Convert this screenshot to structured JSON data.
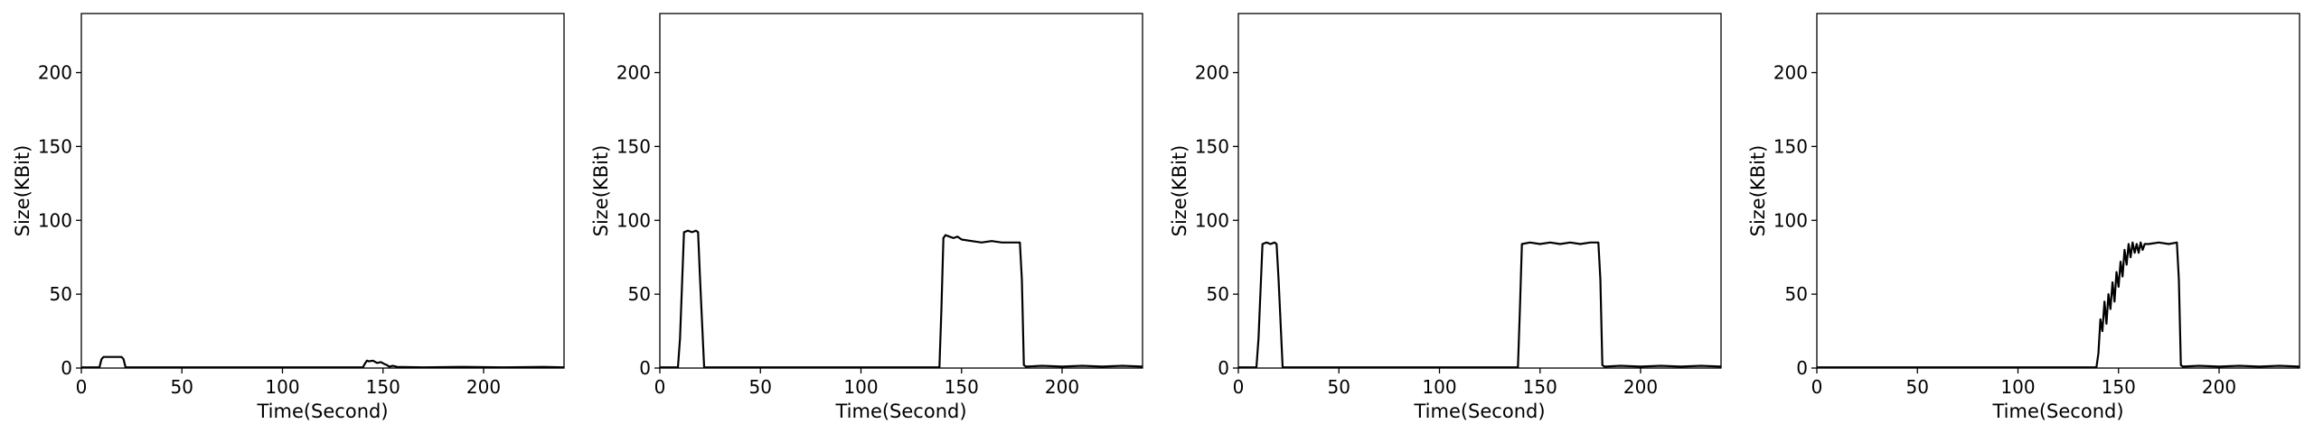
{
  "figure": {
    "colors": {
      "line": "#000000",
      "frame": "#000000",
      "background": "#ffffff"
    }
  },
  "chart_data": [
    {
      "type": "line",
      "title": "",
      "xlabel": "Time(Second)",
      "ylabel": "Size(KBit)",
      "xlim": [
        0,
        240
      ],
      "ylim": [
        0,
        240
      ],
      "xticks": [
        0,
        50,
        100,
        150,
        200
      ],
      "yticks": [
        0,
        50,
        100,
        150,
        200
      ],
      "grid": false,
      "series": [
        {
          "x": [
            0,
            9,
            10,
            11,
            20,
            21,
            22,
            40,
            60,
            80,
            100,
            120,
            140,
            141,
            142,
            143,
            145,
            147,
            149,
            151,
            152,
            153,
            155,
            157,
            170,
            190,
            210,
            230,
            240
          ],
          "y": [
            0.5,
            0.5,
            6,
            7.5,
            7.5,
            6,
            0.5,
            0.5,
            0.5,
            0.5,
            0.5,
            0.5,
            0.5,
            3,
            5,
            4.5,
            5,
            3.5,
            4,
            2.5,
            2,
            1,
            1.5,
            0.8,
            0.5,
            0.8,
            0.5,
            0.8,
            0.5
          ]
        }
      ]
    },
    {
      "type": "line",
      "title": "",
      "xlabel": "Time(Second)",
      "ylabel": "Size(KBit)",
      "xlim": [
        0,
        240
      ],
      "ylim": [
        0,
        240
      ],
      "xticks": [
        0,
        50,
        100,
        150,
        200
      ],
      "yticks": [
        0,
        50,
        100,
        150,
        200
      ],
      "grid": false,
      "series": [
        {
          "x": [
            0,
            9,
            10,
            12,
            14,
            16,
            18,
            19,
            20,
            22,
            40,
            60,
            80,
            100,
            120,
            139,
            140,
            141,
            142,
            144,
            146,
            148,
            150,
            155,
            160,
            165,
            170,
            175,
            179,
            180,
            181,
            182,
            190,
            200,
            210,
            220,
            230,
            240
          ],
          "y": [
            0.5,
            0.5,
            20,
            92,
            93,
            92,
            93,
            92,
            60,
            0.5,
            0.5,
            0.5,
            0.5,
            0.5,
            0.5,
            0.5,
            40,
            88,
            90,
            89,
            88,
            89,
            87,
            86,
            85,
            86,
            85,
            85,
            85,
            60,
            2,
            1,
            1.5,
            1,
            1.5,
            1,
            1.5,
            1
          ]
        }
      ]
    },
    {
      "type": "line",
      "title": "",
      "xlabel": "Time(Second)",
      "ylabel": "Size(KBit)",
      "xlim": [
        0,
        240
      ],
      "ylim": [
        0,
        240
      ],
      "xticks": [
        0,
        50,
        100,
        150,
        200
      ],
      "yticks": [
        0,
        50,
        100,
        150,
        200
      ],
      "grid": false,
      "series": [
        {
          "x": [
            0,
            9,
            10,
            12,
            14,
            16,
            18,
            19,
            20,
            22,
            40,
            60,
            80,
            100,
            120,
            139,
            140,
            141,
            145,
            150,
            155,
            160,
            165,
            170,
            175,
            179,
            180,
            181,
            182,
            190,
            200,
            210,
            220,
            230,
            240
          ],
          "y": [
            0.5,
            0.5,
            20,
            84,
            85,
            84,
            85,
            84,
            60,
            0.5,
            0.5,
            0.5,
            0.5,
            0.5,
            0.5,
            0.5,
            40,
            84,
            85,
            84,
            85,
            84,
            85,
            84,
            85,
            85,
            60,
            2,
            1,
            1.5,
            1,
            1.5,
            1,
            1.5,
            1
          ]
        }
      ]
    },
    {
      "type": "line",
      "title": "",
      "xlabel": "Time(Second)",
      "ylabel": "Size(KBit)",
      "xlim": [
        0,
        240
      ],
      "ylim": [
        0,
        240
      ],
      "xticks": [
        0,
        50,
        100,
        150,
        200
      ],
      "yticks": [
        0,
        50,
        100,
        150,
        200
      ],
      "grid": false,
      "series": [
        {
          "x": [
            0,
            20,
            40,
            60,
            80,
            100,
            120,
            139,
            140,
            141,
            142,
            143,
            144,
            145,
            146,
            147,
            148,
            149,
            150,
            151,
            152,
            153,
            154,
            155,
            156,
            157,
            158,
            159,
            160,
            161,
            162,
            163,
            165,
            170,
            175,
            179,
            180,
            181,
            182,
            190,
            200,
            210,
            220,
            230,
            240
          ],
          "y": [
            0.5,
            0.5,
            0.5,
            0.5,
            0.5,
            0.5,
            0.5,
            0.5,
            10,
            33,
            25,
            45,
            30,
            50,
            40,
            58,
            45,
            65,
            55,
            72,
            62,
            80,
            70,
            84,
            75,
            85,
            78,
            84,
            78,
            85,
            80,
            84,
            84,
            85,
            84,
            85,
            60,
            2,
            1,
            1.5,
            1,
            1.5,
            1,
            1.5,
            1
          ]
        }
      ]
    }
  ]
}
